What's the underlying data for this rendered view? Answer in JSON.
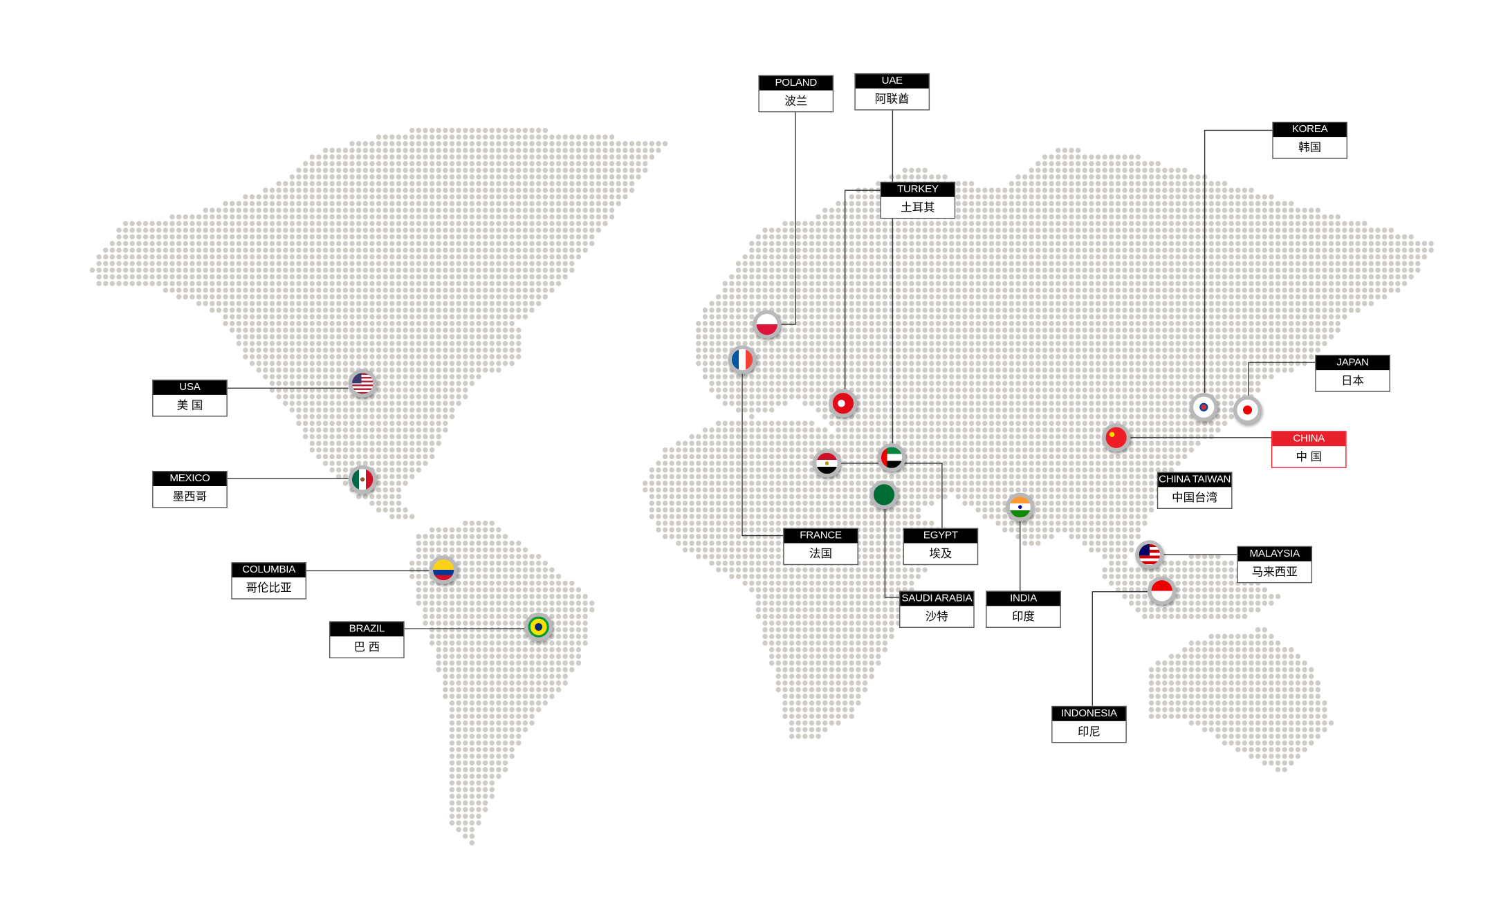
{
  "colors": {
    "land_dot": "#cfcbc6",
    "label_bg": "#000000",
    "highlight": "#e8202a",
    "line": "#333333"
  },
  "locations": [
    {
      "id": "poland",
      "en": "POLAND",
      "zh": "波兰",
      "flag": "poland-flag"
    },
    {
      "id": "uae",
      "en": "UAE",
      "zh": "阿联酋",
      "flag": "uae-flag"
    },
    {
      "id": "turkey",
      "en": "TURKEY",
      "zh": "土耳其",
      "flag": "turkey-flag"
    },
    {
      "id": "korea",
      "en": "KOREA",
      "zh": "韩国",
      "flag": "korea-flag"
    },
    {
      "id": "japan",
      "en": "JAPAN",
      "zh": "日本",
      "flag": "japan-flag"
    },
    {
      "id": "china",
      "en": "CHINA",
      "zh": "中 国",
      "flag": "china-flag",
      "highlight": true
    },
    {
      "id": "china-taiwan",
      "en": "CHINA TAIWAN",
      "zh": "中国台湾"
    },
    {
      "id": "malaysia",
      "en": "MALAYSIA",
      "zh": "马来西亚",
      "flag": "malaysia-flag"
    },
    {
      "id": "indonesia",
      "en": "INDONESIA",
      "zh": "印尼",
      "flag": "indonesia-flag"
    },
    {
      "id": "india",
      "en": "INDIA",
      "zh": "印度",
      "flag": "india-flag"
    },
    {
      "id": "saudi-arabia",
      "en": "SAUDI ARABIA",
      "zh": "沙特",
      "flag": "saudi-flag"
    },
    {
      "id": "egypt",
      "en": "EGYPT",
      "zh": "埃及",
      "flag": "egypt-flag"
    },
    {
      "id": "france",
      "en": "FRANCE",
      "zh": "法国",
      "flag": "france-flag"
    },
    {
      "id": "usa",
      "en": "USA",
      "zh": "美 国",
      "flag": "usa-flag"
    },
    {
      "id": "mexico",
      "en": "MEXICO",
      "zh": "墨西哥",
      "flag": "mexico-flag"
    },
    {
      "id": "columbia",
      "en": "COLUMBIA",
      "zh": "哥伦比亚",
      "flag": "colombia-flag"
    },
    {
      "id": "brazil",
      "en": "BRAZIL",
      "zh": "巴 西",
      "flag": "brazil-flag"
    }
  ]
}
